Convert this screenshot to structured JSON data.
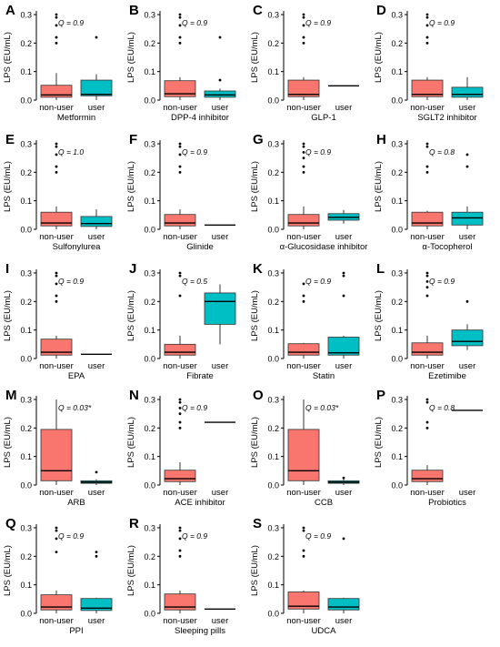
{
  "figure": {
    "colors": {
      "non_user": "#F8766D",
      "user": "#00BFC4",
      "axis": "#000000"
    }
  },
  "chart_data": [
    {
      "letter": "A",
      "type": "boxplot",
      "title": "",
      "xlabel": "Metformin",
      "ylabel": "LPS (EU/mL)",
      "categories": [
        "non-user",
        "user"
      ],
      "ylim": [
        0,
        0.3
      ],
      "yticks": [
        0.0,
        0.1,
        0.2,
        0.3
      ],
      "q_label": "Q = 0.9",
      "boxes": [
        {
          "min": 0.0,
          "q1": 0.01,
          "median": 0.018,
          "q3": 0.052,
          "max": 0.095,
          "outliers": [
            0.3,
            0.29,
            0.262,
            0.22,
            0.2
          ]
        },
        {
          "min": 0.0,
          "q1": 0.015,
          "median": 0.02,
          "q3": 0.07,
          "max": 0.09,
          "outliers": [
            0.22
          ]
        }
      ]
    },
    {
      "letter": "B",
      "type": "boxplot",
      "title": "",
      "xlabel": "DPP-4 inhibitor",
      "ylabel": "LPS (EU/mL)",
      "categories": [
        "non-user",
        "user"
      ],
      "ylim": [
        0,
        0.3
      ],
      "yticks": [
        0.0,
        0.1,
        0.2,
        0.3
      ],
      "q_label": "Q = 0.9",
      "boxes": [
        {
          "min": 0.0,
          "q1": 0.012,
          "median": 0.022,
          "q3": 0.068,
          "max": 0.08,
          "outliers": [
            0.3,
            0.29,
            0.262,
            0.22,
            0.2
          ]
        },
        {
          "min": 0.0,
          "q1": 0.01,
          "median": 0.018,
          "q3": 0.032,
          "max": 0.04,
          "outliers": [
            0.22,
            0.07
          ]
        }
      ]
    },
    {
      "letter": "C",
      "type": "boxplot",
      "title": "",
      "xlabel": "GLP-1",
      "ylabel": "LPS (EU/mL)",
      "categories": [
        "non-user",
        "user"
      ],
      "ylim": [
        0,
        0.3
      ],
      "yticks": [
        0.0,
        0.1,
        0.2,
        0.3
      ],
      "q_label": "Q = 0.9",
      "boxes": [
        {
          "min": 0.0,
          "q1": 0.012,
          "median": 0.02,
          "q3": 0.07,
          "max": 0.08,
          "outliers": [
            0.3,
            0.29,
            0.262,
            0.22,
            0.2
          ]
        },
        {
          "min": 0.05,
          "q1": 0.05,
          "median": 0.05,
          "q3": 0.05,
          "max": 0.05,
          "outliers": []
        }
      ]
    },
    {
      "letter": "D",
      "type": "boxplot",
      "title": "",
      "xlabel": "SGLT2 inhibitor",
      "ylabel": "LPS (EU/mL)",
      "categories": [
        "non-user",
        "user"
      ],
      "ylim": [
        0,
        0.3
      ],
      "yticks": [
        0.0,
        0.1,
        0.2,
        0.3
      ],
      "q_label": "Q = 0.9",
      "boxes": [
        {
          "min": 0.0,
          "q1": 0.012,
          "median": 0.02,
          "q3": 0.07,
          "max": 0.08,
          "outliers": [
            0.3,
            0.29,
            0.262,
            0.22,
            0.2
          ]
        },
        {
          "min": 0.0,
          "q1": 0.01,
          "median": 0.02,
          "q3": 0.045,
          "max": 0.08,
          "outliers": []
        }
      ]
    },
    {
      "letter": "E",
      "type": "boxplot",
      "title": "",
      "xlabel": "Sulfonylurea",
      "ylabel": "LPS (EU/mL)",
      "categories": [
        "non-user",
        "user"
      ],
      "ylim": [
        0,
        0.3
      ],
      "yticks": [
        0.0,
        0.1,
        0.2,
        0.3
      ],
      "q_label": "Q = 1.0",
      "boxes": [
        {
          "min": 0.0,
          "q1": 0.012,
          "median": 0.022,
          "q3": 0.06,
          "max": 0.08,
          "outliers": [
            0.3,
            0.29,
            0.262,
            0.22,
            0.2
          ]
        },
        {
          "min": 0.0,
          "q1": 0.01,
          "median": 0.02,
          "q3": 0.045,
          "max": 0.07,
          "outliers": []
        }
      ]
    },
    {
      "letter": "F",
      "type": "boxplot",
      "title": "",
      "xlabel": "Glinide",
      "ylabel": "LPS (EU/mL)",
      "categories": [
        "non-user",
        "user"
      ],
      "ylim": [
        0,
        0.3
      ],
      "yticks": [
        0.0,
        0.1,
        0.2,
        0.3
      ],
      "q_label": "Q = 0.9",
      "boxes": [
        {
          "min": 0.0,
          "q1": 0.012,
          "median": 0.022,
          "q3": 0.052,
          "max": 0.07,
          "outliers": [
            0.3,
            0.29,
            0.262,
            0.22,
            0.2
          ]
        },
        {
          "min": 0.015,
          "q1": 0.015,
          "median": 0.015,
          "q3": 0.015,
          "max": 0.015,
          "outliers": []
        }
      ]
    },
    {
      "letter": "G",
      "type": "boxplot",
      "title": "",
      "xlabel": "α-Glucosidase inhibitor",
      "ylabel": "LPS (EU/mL)",
      "categories": [
        "non-user",
        "user"
      ],
      "ylim": [
        0,
        0.3
      ],
      "yticks": [
        0.0,
        0.1,
        0.2,
        0.3
      ],
      "q_label": "Q = 0.9",
      "boxes": [
        {
          "min": 0.0,
          "q1": 0.012,
          "median": 0.022,
          "q3": 0.052,
          "max": 0.08,
          "outliers": [
            0.3,
            0.29,
            0.27,
            0.25,
            0.22,
            0.2
          ]
        },
        {
          "min": 0.02,
          "q1": 0.032,
          "median": 0.042,
          "q3": 0.055,
          "max": 0.068,
          "outliers": []
        }
      ]
    },
    {
      "letter": "H",
      "type": "boxplot",
      "title": "",
      "xlabel": "α-Tocopherol",
      "ylabel": "LPS (EU/mL)",
      "categories": [
        "non-user",
        "user"
      ],
      "ylim": [
        0,
        0.3
      ],
      "yticks": [
        0.0,
        0.1,
        0.2,
        0.3
      ],
      "q_label": "Q = 0.8",
      "boxes": [
        {
          "min": 0.0,
          "q1": 0.012,
          "median": 0.022,
          "q3": 0.06,
          "max": 0.065,
          "outliers": [
            0.3,
            0.29,
            0.22,
            0.2
          ]
        },
        {
          "min": 0.0,
          "q1": 0.015,
          "median": 0.04,
          "q3": 0.06,
          "max": 0.08,
          "outliers": [
            0.262,
            0.22
          ]
        }
      ]
    },
    {
      "letter": "I",
      "type": "boxplot",
      "title": "",
      "xlabel": "EPA",
      "ylabel": "LPS (EU/mL)",
      "categories": [
        "non-user",
        "user"
      ],
      "ylim": [
        0,
        0.3
      ],
      "yticks": [
        0.0,
        0.1,
        0.2,
        0.3
      ],
      "q_label": "Q = 0.9",
      "boxes": [
        {
          "min": 0.0,
          "q1": 0.012,
          "median": 0.022,
          "q3": 0.068,
          "max": 0.08,
          "outliers": [
            0.3,
            0.29,
            0.262,
            0.22,
            0.2
          ]
        },
        {
          "min": 0.015,
          "q1": 0.015,
          "median": 0.015,
          "q3": 0.015,
          "max": 0.015,
          "outliers": []
        }
      ]
    },
    {
      "letter": "J",
      "type": "boxplot",
      "title": "",
      "xlabel": "Fibrate",
      "ylabel": "LPS (EU/mL)",
      "categories": [
        "non-user",
        "user"
      ],
      "ylim": [
        0,
        0.3
      ],
      "yticks": [
        0.0,
        0.1,
        0.2,
        0.3
      ],
      "q_label": "Q = 0.5",
      "boxes": [
        {
          "min": 0.0,
          "q1": 0.012,
          "median": 0.022,
          "q3": 0.05,
          "max": 0.08,
          "outliers": [
            0.3,
            0.29,
            0.22
          ]
        },
        {
          "min": 0.05,
          "q1": 0.12,
          "median": 0.2,
          "q3": 0.23,
          "max": 0.26,
          "outliers": []
        }
      ]
    },
    {
      "letter": "K",
      "type": "boxplot",
      "title": "",
      "xlabel": "Statin",
      "ylabel": "LPS (EU/mL)",
      "categories": [
        "non-user",
        "user"
      ],
      "ylim": [
        0,
        0.3
      ],
      "yticks": [
        0.0,
        0.1,
        0.2,
        0.3
      ],
      "q_label": "Q = 0.9",
      "boxes": [
        {
          "min": 0.0,
          "q1": 0.012,
          "median": 0.022,
          "q3": 0.052,
          "max": 0.055,
          "outliers": [
            0.262,
            0.22,
            0.2
          ]
        },
        {
          "min": 0.0,
          "q1": 0.012,
          "median": 0.02,
          "q3": 0.075,
          "max": 0.08,
          "outliers": [
            0.3,
            0.29,
            0.22
          ]
        }
      ]
    },
    {
      "letter": "L",
      "type": "boxplot",
      "title": "",
      "xlabel": "Ezetimibe",
      "ylabel": "LPS (EU/mL)",
      "categories": [
        "non-user",
        "user"
      ],
      "ylim": [
        0,
        0.3
      ],
      "yticks": [
        0.0,
        0.1,
        0.2,
        0.3
      ],
      "q_label": "Q = 0.9",
      "boxes": [
        {
          "min": 0.0,
          "q1": 0.012,
          "median": 0.022,
          "q3": 0.055,
          "max": 0.08,
          "outliers": [
            0.3,
            0.29,
            0.27,
            0.25,
            0.22
          ]
        },
        {
          "min": 0.03,
          "q1": 0.045,
          "median": 0.06,
          "q3": 0.1,
          "max": 0.12,
          "outliers": [
            0.2
          ]
        }
      ]
    },
    {
      "letter": "M",
      "type": "boxplot",
      "title": "",
      "xlabel": "ARB",
      "ylabel": "LPS (EU/mL)",
      "categories": [
        "non-user",
        "user"
      ],
      "ylim": [
        0,
        0.3
      ],
      "yticks": [
        0.0,
        0.1,
        0.2,
        0.3
      ],
      "q_label": "Q = 0.03*",
      "boxes": [
        {
          "min": 0.0,
          "q1": 0.015,
          "median": 0.05,
          "q3": 0.195,
          "max": 0.3,
          "outliers": []
        },
        {
          "min": 0.0,
          "q1": 0.006,
          "median": 0.01,
          "q3": 0.015,
          "max": 0.02,
          "outliers": [
            0.045
          ]
        }
      ]
    },
    {
      "letter": "N",
      "type": "boxplot",
      "title": "",
      "xlabel": "ACE inhibitor",
      "ylabel": "LPS (EU/mL)",
      "categories": [
        "non-user",
        "user"
      ],
      "ylim": [
        0,
        0.3
      ],
      "yticks": [
        0.0,
        0.1,
        0.2,
        0.3
      ],
      "q_label": "Q = 0.9",
      "boxes": [
        {
          "min": 0.0,
          "q1": 0.012,
          "median": 0.022,
          "q3": 0.052,
          "max": 0.08,
          "outliers": [
            0.3,
            0.29,
            0.27,
            0.25,
            0.22,
            0.2
          ]
        },
        {
          "min": 0.22,
          "q1": 0.22,
          "median": 0.22,
          "q3": 0.22,
          "max": 0.22,
          "outliers": []
        }
      ]
    },
    {
      "letter": "O",
      "type": "boxplot",
      "title": "",
      "xlabel": "CCB",
      "ylabel": "LPS (EU/mL)",
      "categories": [
        "non-user",
        "user"
      ],
      "ylim": [
        0,
        0.3
      ],
      "yticks": [
        0.0,
        0.1,
        0.2,
        0.3
      ],
      "q_label": "Q = 0.03*",
      "boxes": [
        {
          "min": 0.0,
          "q1": 0.015,
          "median": 0.05,
          "q3": 0.195,
          "max": 0.3,
          "outliers": []
        },
        {
          "min": 0.0,
          "q1": 0.006,
          "median": 0.01,
          "q3": 0.015,
          "max": 0.02,
          "outliers": [
            0.025
          ]
        }
      ]
    },
    {
      "letter": "P",
      "type": "boxplot",
      "title": "",
      "xlabel": "Probiotics",
      "ylabel": "LPS (EU/mL)",
      "categories": [
        "non-user",
        "user"
      ],
      "ylim": [
        0,
        0.3
      ],
      "yticks": [
        0.0,
        0.1,
        0.2,
        0.3
      ],
      "q_label": "Q = 0.8",
      "boxes": [
        {
          "min": 0.0,
          "q1": 0.012,
          "median": 0.022,
          "q3": 0.052,
          "max": 0.07,
          "outliers": [
            0.3,
            0.29,
            0.22,
            0.2
          ]
        },
        {
          "min": 0.262,
          "q1": 0.262,
          "median": 0.262,
          "q3": 0.262,
          "max": 0.262,
          "outliers": []
        }
      ]
    },
    {
      "letter": "Q",
      "type": "boxplot",
      "title": "",
      "xlabel": "PPI",
      "ylabel": "LPS (EU/mL)",
      "categories": [
        "non-user",
        "user"
      ],
      "ylim": [
        0,
        0.3
      ],
      "yticks": [
        0.0,
        0.1,
        0.2,
        0.3
      ],
      "q_label": "Q = 0.9",
      "boxes": [
        {
          "min": 0.0,
          "q1": 0.012,
          "median": 0.022,
          "q3": 0.065,
          "max": 0.08,
          "outliers": [
            0.3,
            0.29,
            0.262,
            0.215
          ]
        },
        {
          "min": 0.0,
          "q1": 0.01,
          "median": 0.018,
          "q3": 0.052,
          "max": 0.055,
          "outliers": [
            0.215,
            0.2
          ]
        }
      ]
    },
    {
      "letter": "R",
      "type": "boxplot",
      "title": "",
      "xlabel": "Sleeping pills",
      "ylabel": "LPS (EU/mL)",
      "categories": [
        "non-user",
        "user"
      ],
      "ylim": [
        0,
        0.3
      ],
      "yticks": [
        0.0,
        0.1,
        0.2,
        0.3
      ],
      "q_label": "Q = 0.9",
      "boxes": [
        {
          "min": 0.0,
          "q1": 0.012,
          "median": 0.022,
          "q3": 0.068,
          "max": 0.08,
          "outliers": [
            0.3,
            0.29,
            0.262,
            0.22,
            0.2
          ]
        },
        {
          "min": 0.015,
          "q1": 0.015,
          "median": 0.015,
          "q3": 0.015,
          "max": 0.015,
          "outliers": []
        }
      ]
    },
    {
      "letter": "S",
      "type": "boxplot",
      "title": "",
      "xlabel": "UDCA",
      "ylabel": "LPS (EU/mL)",
      "categories": [
        "non-user",
        "user"
      ],
      "ylim": [
        0,
        0.3
      ],
      "yticks": [
        0.0,
        0.1,
        0.2,
        0.3
      ],
      "q_label": "Q = 0.9",
      "boxes": [
        {
          "min": 0.0,
          "q1": 0.015,
          "median": 0.025,
          "q3": 0.075,
          "max": 0.08,
          "outliers": [
            0.3,
            0.29,
            0.22,
            0.2
          ]
        },
        {
          "min": 0.0,
          "q1": 0.012,
          "median": 0.022,
          "q3": 0.052,
          "max": 0.055,
          "outliers": [
            0.262
          ]
        }
      ]
    }
  ]
}
